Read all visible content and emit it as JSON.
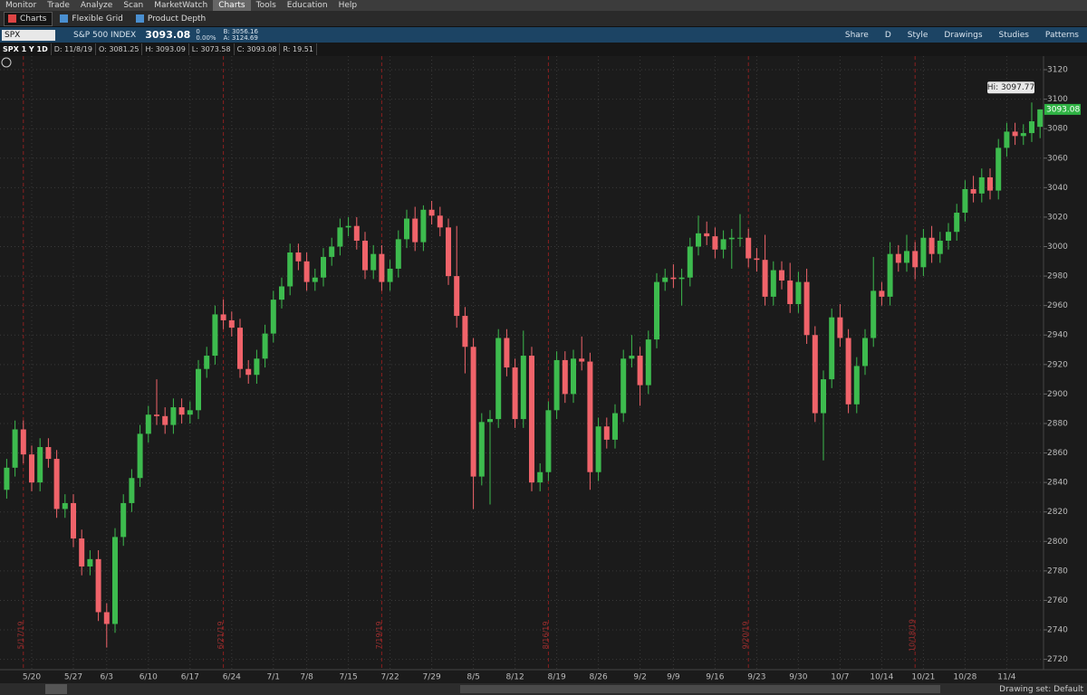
{
  "menu": [
    "Monitor",
    "Trade",
    "Analyze",
    "Scan",
    "MarketWatch",
    "Charts",
    "Tools",
    "Education",
    "Help"
  ],
  "tabs": [
    "Charts",
    "Flexible Grid",
    "Product Depth"
  ],
  "symbol": {
    "ticker": "SPX",
    "name": "S&P 500 INDEX",
    "last": "3093.08",
    "change": "0",
    "change_pct": "0.00%",
    "bid": "B: 3056.16",
    "ask": "A: 3124.69"
  },
  "toolbar": [
    "Share",
    "D",
    "Style",
    "Drawings",
    "Studies",
    "Patterns"
  ],
  "chart_info": {
    "title": "SPX 1 Y 1D",
    "date": "D: 11/8/19",
    "open": "O: 3081.25",
    "high": "H: 3093.09",
    "low": "L: 3073.58",
    "close": "C: 3093.08",
    "range": "R: 19.51"
  },
  "chart_data": {
    "type": "candlestick",
    "categories": [
      null,
      null,
      null,
      "5/20",
      null,
      null,
      null,
      null,
      "5/27",
      null,
      null,
      null,
      "6/3",
      null,
      null,
      null,
      null,
      "6/10",
      null,
      null,
      null,
      null,
      "6/17",
      null,
      null,
      null,
      null,
      "6/24",
      null,
      null,
      null,
      null,
      "7/1",
      null,
      null,
      null,
      "7/8",
      null,
      null,
      null,
      null,
      "7/15",
      null,
      null,
      null,
      null,
      "7/22",
      null,
      null,
      null,
      null,
      "7/29",
      null,
      null,
      null,
      null,
      "8/5",
      null,
      null,
      null,
      null,
      "8/12",
      null,
      null,
      null,
      null,
      "8/19",
      null,
      null,
      null,
      null,
      "8/26",
      null,
      null,
      null,
      null,
      "9/2",
      null,
      null,
      null,
      "9/9",
      null,
      null,
      null,
      null,
      "9/16",
      null,
      null,
      null,
      null,
      "9/23",
      null,
      null,
      null,
      null,
      "9/30",
      null,
      null,
      null,
      null,
      "10/7",
      null,
      null,
      null,
      null,
      "10/14",
      null,
      null,
      null,
      null,
      "10/21",
      null,
      null,
      null,
      null,
      "10/28",
      null,
      null,
      null,
      null,
      "11/4",
      null,
      null,
      null,
      null
    ],
    "open": [
      2835,
      2850,
      2876,
      2859,
      2840,
      2864,
      2856,
      2822,
      2826,
      2802,
      2783,
      2788,
      2752,
      2744,
      2803,
      2826,
      2843,
      2873,
      2886,
      2885,
      2879,
      2891,
      2886,
      2889,
      2917,
      2926,
      2954,
      2950,
      2945,
      2917,
      2913,
      2924,
      2941,
      2964,
      2973,
      2996,
      2990,
      2976,
      2979,
      2993,
      3000,
      3013,
      3014,
      3004,
      2984,
      2995,
      2976,
      2985,
      3005,
      3019,
      3003,
      3025,
      3021,
      3013,
      2980,
      2953,
      2932,
      2844,
      2881,
      2883,
      2938,
      2918,
      2883,
      2926,
      2840,
      2847,
      2889,
      2923,
      2900,
      2924,
      2922,
      2847,
      2878,
      2869,
      2887,
      2924,
      2926,
      2906,
      2937,
      2976,
      2979,
      2978,
      2979,
      3000,
      3009,
      3007,
      2998,
      3005,
      3006,
      3006,
      2992,
      2991,
      2966,
      2984,
      2977,
      2961,
      2976,
      2940,
      2887,
      2910,
      2952,
      2938,
      2893,
      2919,
      2938,
      2970,
      2966,
      2995,
      2989,
      2997,
      2986,
      3006,
      2995,
      3004,
      3010,
      3023,
      3039,
      3036,
      3047,
      3038,
      3067,
      3078,
      3075,
      3077,
      3081.25
    ],
    "high": [
      2856,
      2882,
      2882,
      2865,
      2870,
      2870,
      2862,
      2832,
      2832,
      2808,
      2794,
      2794,
      2758,
      2809,
      2832,
      2849,
      2879,
      2892,
      2910,
      2891,
      2897,
      2897,
      2895,
      2923,
      2932,
      2960,
      2964,
      2956,
      2951,
      2923,
      2930,
      2947,
      2970,
      2979,
      3002,
      3002,
      2996,
      2985,
      2999,
      3006,
      3019,
      3020,
      3020,
      3010,
      3001,
      3001,
      2991,
      3011,
      3025,
      3027,
      3028,
      3031,
      3027,
      3019,
      3014,
      2959,
      2938,
      2887,
      2889,
      2944,
      2944,
      2924,
      2943,
      2932,
      2853,
      2895,
      2929,
      2929,
      2930,
      2939,
      2928,
      2884,
      2884,
      2893,
      2930,
      2940,
      2932,
      2943,
      2982,
      2985,
      2988,
      2985,
      3006,
      3021,
      3017,
      3013,
      3011,
      3012,
      3022,
      3012,
      2999,
      3008,
      2990,
      2990,
      2989,
      2983,
      2985,
      2946,
      2916,
      2958,
      2961,
      2944,
      2925,
      2944,
      2993,
      2976,
      3003,
      3001,
      3008,
      3003,
      3012,
      3014,
      3010,
      3016,
      3029,
      3045,
      3048,
      3053,
      3053,
      3073,
      3084,
      3084,
      3083,
      3097.77,
      3093.09
    ],
    "low": [
      2829,
      2844,
      2853,
      2834,
      2834,
      2850,
      2816,
      2816,
      2796,
      2777,
      2777,
      2746,
      2728,
      2738,
      2797,
      2820,
      2837,
      2867,
      2879,
      2873,
      2873,
      2880,
      2880,
      2883,
      2911,
      2920,
      2944,
      2939,
      2911,
      2907,
      2907,
      2918,
      2935,
      2958,
      2967,
      2984,
      2970,
      2970,
      2973,
      2987,
      2994,
      3007,
      2998,
      2978,
      2978,
      2970,
      2970,
      2979,
      2999,
      2997,
      2997,
      3015,
      3007,
      2974,
      2945,
      2914,
      2822,
      2838,
      2825,
      2877,
      2912,
      2877,
      2877,
      2834,
      2834,
      2841,
      2883,
      2894,
      2894,
      2916,
      2835,
      2841,
      2863,
      2863,
      2881,
      2918,
      2892,
      2900,
      2931,
      2970,
      2972,
      2960,
      2973,
      2994,
      3001,
      2992,
      2992,
      2985,
      3000,
      2986,
      2983,
      2960,
      2960,
      2971,
      2955,
      2955,
      2934,
      2881,
      2855,
      2904,
      2932,
      2887,
      2887,
      2913,
      2932,
      2960,
      2960,
      2983,
      2983,
      2978,
      2980,
      2989,
      2989,
      2998,
      3004,
      3017,
      3030,
      3030,
      3032,
      3032,
      3061,
      3069,
      3069,
      3071,
      3073.58
    ],
    "close": [
      2850,
      2876,
      2859,
      2840,
      2864,
      2856,
      2822,
      2826,
      2802,
      2783,
      2788,
      2752,
      2744,
      2803,
      2826,
      2843,
      2873,
      2886,
      2885,
      2879,
      2891,
      2886,
      2889,
      2917,
      2926,
      2954,
      2950,
      2945,
      2917,
      2913,
      2924,
      2941,
      2964,
      2973,
      2996,
      2990,
      2976,
      2979,
      2993,
      3000,
      3013,
      3014,
      3004,
      2984,
      2995,
      2976,
      2985,
      3005,
      3019,
      3003,
      3025,
      3021,
      3013,
      2980,
      2953,
      2932,
      2844,
      2881,
      2883,
      2938,
      2918,
      2883,
      2926,
      2840,
      2847,
      2889,
      2923,
      2900,
      2924,
      2922,
      2847,
      2878,
      2869,
      2887,
      2924,
      2926,
      2906,
      2937,
      2976,
      2979,
      2978,
      2979,
      3000,
      3009,
      3007,
      2998,
      3005,
      3006,
      3006,
      2992,
      2991,
      2966,
      2984,
      2977,
      2961,
      2976,
      2940,
      2887,
      2910,
      2952,
      2938,
      2893,
      2919,
      2938,
      2970,
      2966,
      2995,
      2989,
      2997,
      2986,
      3006,
      2995,
      3004,
      3010,
      3023,
      3039,
      3036,
      3047,
      3038,
      3067,
      3078,
      3075,
      3077,
      3085,
      3093.08
    ],
    "ylim": [
      2713,
      3128
    ],
    "yticks": [
      2720,
      2740,
      2760,
      2780,
      2800,
      2820,
      2840,
      2860,
      2880,
      2900,
      2920,
      2940,
      2960,
      2980,
      3000,
      3020,
      3040,
      3060,
      3080,
      3100,
      3120
    ],
    "grid": true,
    "up_color": "#3dbb4e",
    "down_color": "#f0636a",
    "hi_label": "Hi: 3097.77",
    "last_label": "3093.08",
    "expirations": [
      "5/17/19",
      "6/21/19",
      "7/19/19",
      "8/16/19",
      "9/20/19",
      "10/18/19"
    ]
  },
  "status": "Drawing set: Default"
}
